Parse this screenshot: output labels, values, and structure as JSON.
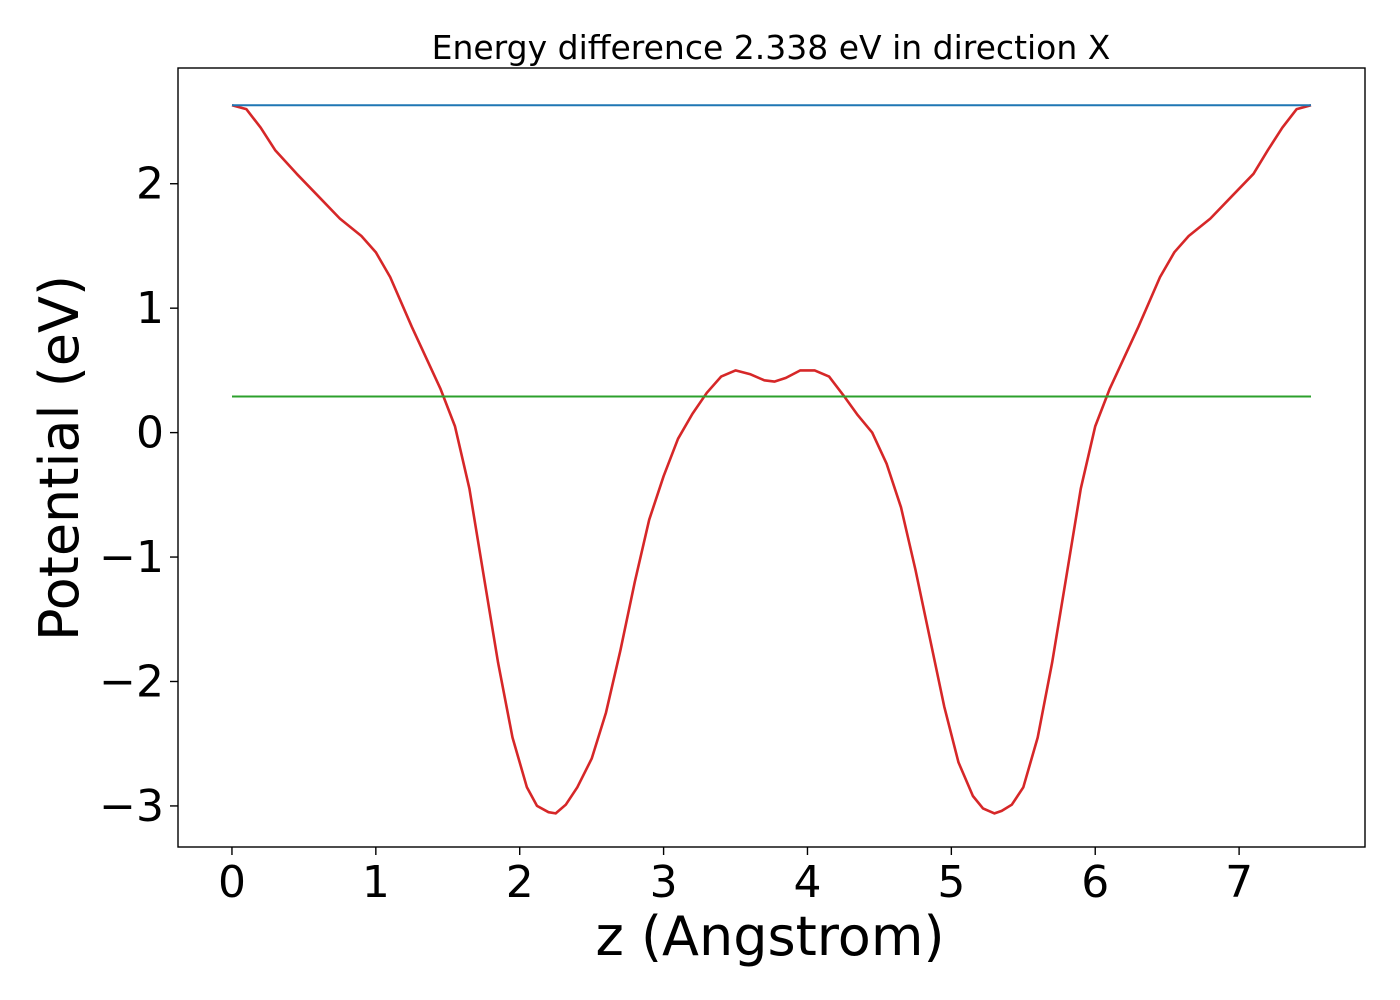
{
  "chart_data": {
    "type": "line",
    "title": "Energy difference 2.338 eV in direction X",
    "xlabel": "z (Angstrom)",
    "ylabel": "Potential (eV)",
    "xlim": [
      -0.375,
      7.875
    ],
    "ylim": [
      -3.33,
      2.93
    ],
    "xticks": [
      0,
      1,
      2,
      3,
      4,
      5,
      6,
      7
    ],
    "xtick_labels": [
      "0",
      "1",
      "2",
      "3",
      "4",
      "5",
      "6",
      "7"
    ],
    "yticks": [
      -3,
      -2,
      -1,
      0,
      1,
      2
    ],
    "ytick_labels": [
      "−3",
      "−2",
      "−1",
      "0",
      "1",
      "2"
    ],
    "grid": false,
    "series": [
      {
        "color": "#d62728",
        "x": [
          0,
          0.1,
          0.2,
          0.3,
          0.45,
          0.6,
          0.75,
          0.9,
          1.0,
          1.1,
          1.25,
          1.35,
          1.45,
          1.55,
          1.65,
          1.75,
          1.85,
          1.95,
          2.05,
          2.12,
          2.2,
          2.25,
          2.32,
          2.4,
          2.5,
          2.6,
          2.7,
          2.8,
          2.9,
          3.0,
          3.1,
          3.2,
          3.3,
          3.4,
          3.5,
          3.6,
          3.7,
          3.77,
          3.85,
          3.95,
          4.05,
          4.15,
          4.25,
          4.35,
          4.45,
          4.55,
          4.65,
          4.75,
          4.85,
          4.95,
          5.05,
          5.15,
          5.22,
          5.3,
          5.35,
          5.42,
          5.5,
          5.6,
          5.7,
          5.8,
          5.9,
          6.0,
          6.1,
          6.2,
          6.3,
          6.45,
          6.55,
          6.65,
          6.8,
          6.95,
          7.1,
          7.2,
          7.3,
          7.4,
          7.5
        ],
        "y": [
          2.63,
          2.6,
          2.45,
          2.27,
          2.08,
          1.9,
          1.72,
          1.58,
          1.45,
          1.25,
          0.85,
          0.6,
          0.35,
          0.05,
          -0.45,
          -1.15,
          -1.85,
          -2.45,
          -2.85,
          -3.0,
          -3.05,
          -3.06,
          -2.99,
          -2.85,
          -2.62,
          -2.25,
          -1.75,
          -1.2,
          -0.7,
          -0.35,
          -0.05,
          0.15,
          0.32,
          0.45,
          0.5,
          0.47,
          0.42,
          0.41,
          0.44,
          0.5,
          0.5,
          0.45,
          0.3,
          0.14,
          0.0,
          -0.25,
          -0.6,
          -1.1,
          -1.65,
          -2.2,
          -2.65,
          -2.92,
          -3.02,
          -3.06,
          -3.04,
          -2.99,
          -2.85,
          -2.45,
          -1.85,
          -1.15,
          -0.45,
          0.05,
          0.35,
          0.6,
          0.85,
          1.25,
          1.45,
          1.58,
          1.72,
          1.9,
          2.08,
          2.27,
          2.45,
          2.6,
          2.63
        ]
      },
      {
        "color": "#1f77b4",
        "x": [
          0,
          7.5
        ],
        "y": [
          2.63,
          2.63
        ]
      },
      {
        "color": "#2ca02c",
        "x": [
          0,
          7.5
        ],
        "y": [
          0.29,
          0.29
        ]
      }
    ]
  }
}
